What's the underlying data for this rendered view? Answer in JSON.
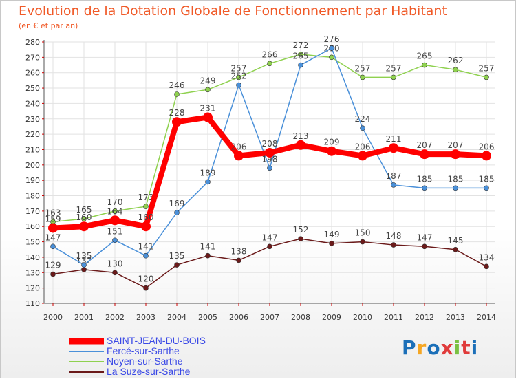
{
  "header": {
    "title": "Evolution de la Dotation Globale de Fonctionnement par Habitant",
    "subtitle": "(en € et par an)"
  },
  "chart_data": {
    "type": "line",
    "title": "Evolution de la Dotation Globale de Fonctionnement par Habitant",
    "subtitle": "(en € et par an)",
    "x": [
      "2000",
      "2001",
      "2002",
      "2003",
      "2004",
      "2005",
      "2006",
      "2007",
      "2008",
      "2009",
      "2010",
      "2011",
      "2012",
      "2013",
      "2014"
    ],
    "ylim": [
      110,
      280
    ],
    "yticks": [
      110,
      120,
      130,
      140,
      150,
      160,
      170,
      180,
      190,
      200,
      210,
      220,
      230,
      240,
      250,
      260,
      270,
      280
    ],
    "grid": true,
    "legend_position": "bottom-left",
    "series": [
      {
        "name": "SAINT-JEAN-DU-BOIS",
        "color": "#ff0000",
        "values": [
          159,
          160,
          164,
          160,
          228,
          231,
          206,
          208,
          213,
          209,
          206,
          211,
          207,
          207,
          206
        ]
      },
      {
        "name": "Fercé-sur-Sarthe",
        "color": "#4a90d9",
        "values": [
          147,
          135,
          151,
          141,
          169,
          189,
          252,
          198,
          265,
          276,
          224,
          187,
          185,
          185,
          185
        ]
      },
      {
        "name": "Noyen-sur-Sarthe",
        "color": "#8fd14f",
        "values": [
          163,
          165,
          170,
          173,
          246,
          249,
          257,
          266,
          272,
          270,
          257,
          257,
          265,
          262,
          257
        ]
      },
      {
        "name": "La Suze-sur-Sarthe",
        "color": "#6b1a1a",
        "values": [
          129,
          132,
          130,
          120,
          135,
          141,
          138,
          147,
          152,
          149,
          150,
          148,
          147,
          145,
          134
        ]
      }
    ]
  },
  "logo": {
    "text": "Proxiti",
    "colors": [
      "#1b6fb8",
      "#f5a623",
      "#1b6fb8",
      "#e03b3b",
      "#7ac143",
      "#e03b3b",
      "#1b6fb8"
    ]
  }
}
